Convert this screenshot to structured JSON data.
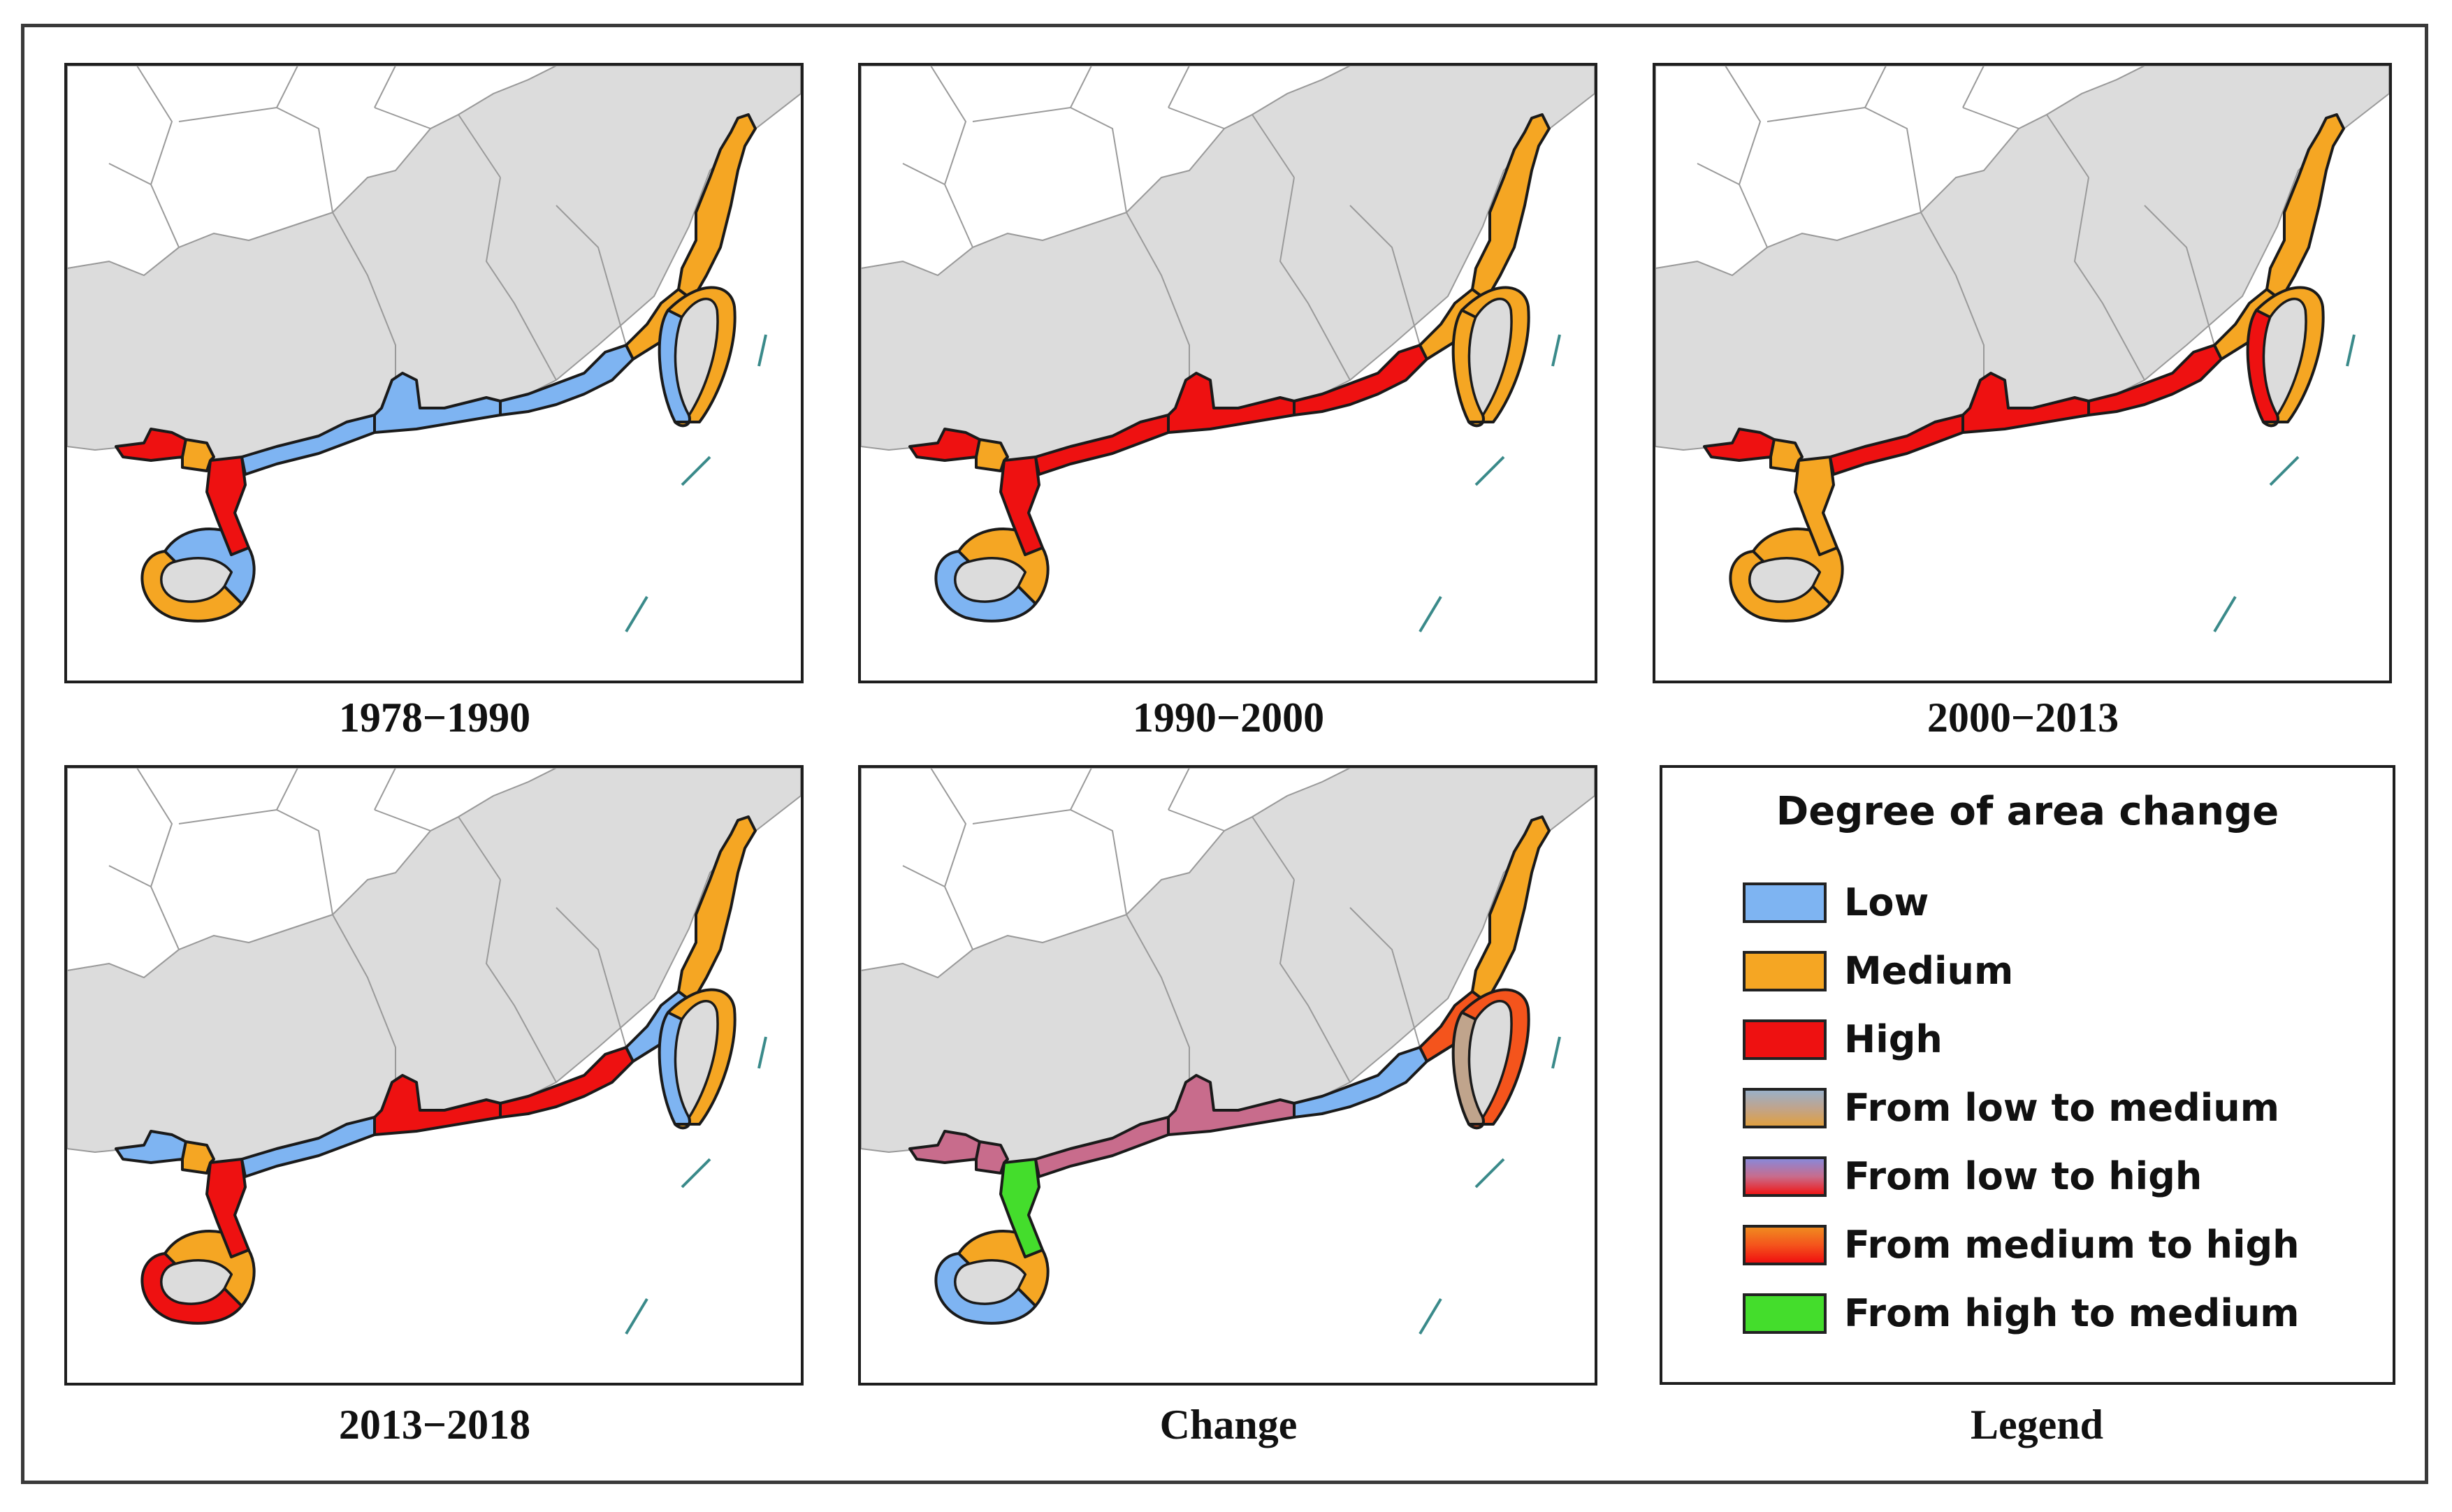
{
  "figure": {
    "panels": [
      {
        "caption": "1978−1990"
      },
      {
        "caption": "1990−2000"
      },
      {
        "caption": "2000−2013"
      },
      {
        "caption": "2013−2018"
      },
      {
        "caption": "Change"
      }
    ],
    "legend_caption": "Legend"
  },
  "legend": {
    "title": "Degree of area change",
    "items": [
      {
        "label": "Low",
        "color": "#7eb4f2"
      },
      {
        "label": "Medium",
        "color": "#f5a623"
      },
      {
        "label": "High",
        "color": "#ee1111"
      },
      {
        "label": "From low to medium",
        "color": "#c0a48c"
      },
      {
        "label": "From low to high",
        "color": "#c86c8c"
      },
      {
        "label": "From medium to high",
        "color": "#f4541c"
      },
      {
        "label": "From high to medium",
        "color": "#44dd2c"
      }
    ]
  },
  "map_colors": {
    "land": "#dcdcdc",
    "border": "#9a9a9a",
    "ocean": "#ffffff",
    "segment_outline": "#1a1a1a",
    "shoal": "#3a8a8a"
  }
}
